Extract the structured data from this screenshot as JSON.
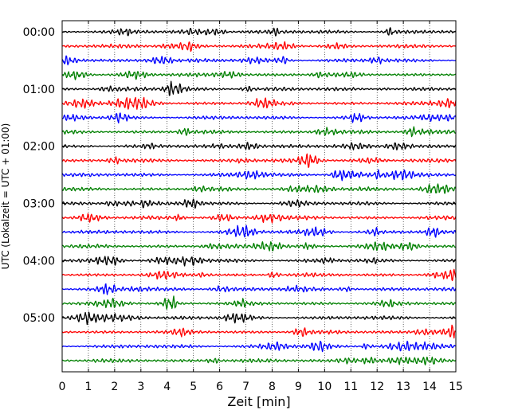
{
  "chart_data": {
    "type": "line",
    "title": "",
    "xlabel": "Zeit  [min]",
    "ylabel": "UTC (Lokalzeit = UTC + 01:00)",
    "xlim": [
      0,
      15
    ],
    "x_ticks": [
      "0",
      "1",
      "2",
      "3",
      "4",
      "5",
      "6",
      "7",
      "8",
      "9",
      "10",
      "11",
      "12",
      "13",
      "14",
      "15"
    ],
    "y_tick_labels": [
      "00:00",
      "01:00",
      "02:00",
      "03:00",
      "04:00",
      "05:00"
    ],
    "grid": "vertical dotted at each minute",
    "trace_interval_minutes": 15,
    "trace_count": 24,
    "colors": [
      "#000000",
      "#ff0000",
      "#0000ff",
      "#008000"
    ],
    "series": [
      {
        "start": "00:00",
        "color": "#000000"
      },
      {
        "start": "00:15",
        "color": "#ff0000"
      },
      {
        "start": "00:30",
        "color": "#0000ff"
      },
      {
        "start": "00:45",
        "color": "#008000"
      },
      {
        "start": "01:00",
        "color": "#000000"
      },
      {
        "start": "01:15",
        "color": "#ff0000"
      },
      {
        "start": "01:30",
        "color": "#0000ff"
      },
      {
        "start": "01:45",
        "color": "#008000"
      },
      {
        "start": "02:00",
        "color": "#000000"
      },
      {
        "start": "02:15",
        "color": "#ff0000"
      },
      {
        "start": "02:30",
        "color": "#0000ff"
      },
      {
        "start": "02:45",
        "color": "#008000"
      },
      {
        "start": "03:00",
        "color": "#000000"
      },
      {
        "start": "03:15",
        "color": "#ff0000"
      },
      {
        "start": "03:30",
        "color": "#0000ff"
      },
      {
        "start": "03:45",
        "color": "#008000"
      },
      {
        "start": "04:00",
        "color": "#000000"
      },
      {
        "start": "04:15",
        "color": "#ff0000"
      },
      {
        "start": "04:30",
        "color": "#0000ff"
      },
      {
        "start": "04:45",
        "color": "#008000"
      },
      {
        "start": "05:00",
        "color": "#000000"
      },
      {
        "start": "05:15",
        "color": "#ff0000"
      },
      {
        "start": "05:30",
        "color": "#0000ff"
      },
      {
        "start": "05:45",
        "color": "#008000"
      }
    ]
  }
}
